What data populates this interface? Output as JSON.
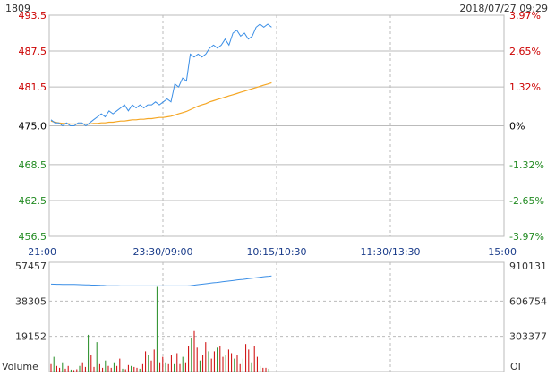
{
  "header": {
    "symbol": "i1809",
    "datetime": "2018/07/27 09:29"
  },
  "colors": {
    "up": "#cc0000",
    "down": "#228b22",
    "neutral": "#000000",
    "price_line": "#3a8ee6",
    "avg_line": "#f5a623",
    "oi_line": "#3a8ee6",
    "vol_up": "#cc0000",
    "vol_down": "#228b22",
    "grid": "#bbbbbb",
    "border": "#bbbbbb"
  },
  "chart_data": [
    {
      "type": "line",
      "title": "",
      "xlabel": "",
      "ylabel": "",
      "time_ticks": [
        "21:00",
        "23:30/09:00",
        "10:15/10:30",
        "11:30/13:30",
        "15:00"
      ],
      "y_ticks_left": [
        "493.5",
        "487.5",
        "481.5",
        "475.0",
        "468.5",
        "462.5",
        "456.5"
      ],
      "y_ticks_right": [
        "3.97%",
        "2.65%",
        "1.32%",
        "0%",
        "-1.32%",
        "-2.65%",
        "-3.97%"
      ],
      "ylim": [
        456.5,
        493.5
      ],
      "reference": 475.0,
      "grid": true,
      "series": [
        {
          "values": [
            476.0,
            475.5,
            475.5,
            475.0,
            475.5,
            475.0,
            475.0,
            475.5,
            475.5,
            475.0,
            475.5,
            476.0,
            476.5,
            477.0,
            476.5,
            477.5,
            477.0,
            477.5,
            478.0,
            478.5,
            477.5,
            478.5,
            478.0,
            478.5,
            478.0,
            478.5,
            478.5,
            479.0,
            478.5,
            479.0,
            479.5,
            479.0,
            482.0,
            481.5,
            483.0,
            482.5,
            487.0,
            486.5,
            487.0,
            486.5,
            487.0,
            488.0,
            488.5,
            488.0,
            488.5,
            489.5,
            488.5,
            490.5,
            491.0,
            490.0,
            490.5,
            489.5,
            490.0,
            491.5,
            492.0,
            491.5,
            492.0,
            491.5
          ]
        },
        {
          "values": [
            475.8,
            475.6,
            475.5,
            475.4,
            475.4,
            475.3,
            475.3,
            475.3,
            475.3,
            475.3,
            475.3,
            475.4,
            475.4,
            475.5,
            475.5,
            475.6,
            475.6,
            475.7,
            475.8,
            475.8,
            475.9,
            476.0,
            476.0,
            476.1,
            476.1,
            476.2,
            476.2,
            476.3,
            476.4,
            476.4,
            476.5,
            476.6,
            476.8,
            477.0,
            477.2,
            477.4,
            477.7,
            478.0,
            478.3,
            478.5,
            478.7,
            479.0,
            479.2,
            479.4,
            479.6,
            479.8,
            480.0,
            480.2,
            480.4,
            480.6,
            480.8,
            481.0,
            481.2,
            481.4,
            481.6,
            481.8,
            482.0,
            482.2
          ]
        }
      ]
    },
    {
      "type": "bar",
      "title": "",
      "xlabel": "",
      "ylabel": "Volume",
      "ylabel_right": "OI",
      "y_ticks_left": [
        "57457",
        "38305",
        "19152"
      ],
      "y_ticks_right": [
        "910131",
        "606754",
        "303377"
      ],
      "ylim_volume": [
        0,
        57457
      ],
      "ylim_oi": [
        0,
        910131
      ],
      "grid": true,
      "series": [
        {
          "values": [
            4000,
            8000,
            3000,
            2000,
            5000,
            1500,
            3000,
            1000,
            800,
            1200,
            3000,
            5000,
            2500,
            20000,
            9000,
            2500,
            16000,
            4000,
            2000,
            6000,
            3000,
            2000,
            5000,
            3000,
            7000,
            1500,
            1200,
            3500,
            3000,
            2500,
            2000,
            1500,
            4000,
            11000,
            9000,
            6000,
            12000,
            46000,
            5000,
            8000,
            5000,
            4000,
            9000,
            4000,
            10000,
            4000,
            8000,
            5000,
            14000,
            18000,
            22000,
            13000,
            6000,
            9000,
            16000,
            11000,
            7000,
            11000,
            13000,
            14000,
            8000,
            9000,
            12000,
            10000,
            7000,
            9000,
            4000,
            7000,
            15000,
            12000,
            5000,
            14000,
            8000,
            3000,
            2000,
            2000,
            1500
          ]
        },
        {
          "values": [
            753000,
            752000,
            751500,
            751000,
            750500,
            750000,
            749800,
            749700,
            749500,
            749000,
            748000,
            747500,
            747000,
            745500,
            744500,
            744000,
            743500,
            742000,
            741000,
            740000,
            739200,
            738500,
            738000,
            737800,
            737500,
            737200,
            737000,
            737000,
            737000,
            737000,
            737000,
            737000,
            737000,
            737000,
            737000,
            737000,
            737000,
            737000,
            737000,
            737000,
            737000,
            737000,
            737000,
            737000,
            737000,
            737000,
            737000,
            737000,
            740000,
            743000,
            746000,
            749000,
            752000,
            755000,
            758000,
            761000,
            764000,
            767000,
            770000,
            773000,
            776000,
            779000,
            782000,
            785000,
            788000,
            791000,
            794000,
            797000,
            800000,
            803000,
            806000,
            809000,
            812000,
            815000,
            818000,
            821000,
            824000
          ]
        }
      ]
    }
  ]
}
